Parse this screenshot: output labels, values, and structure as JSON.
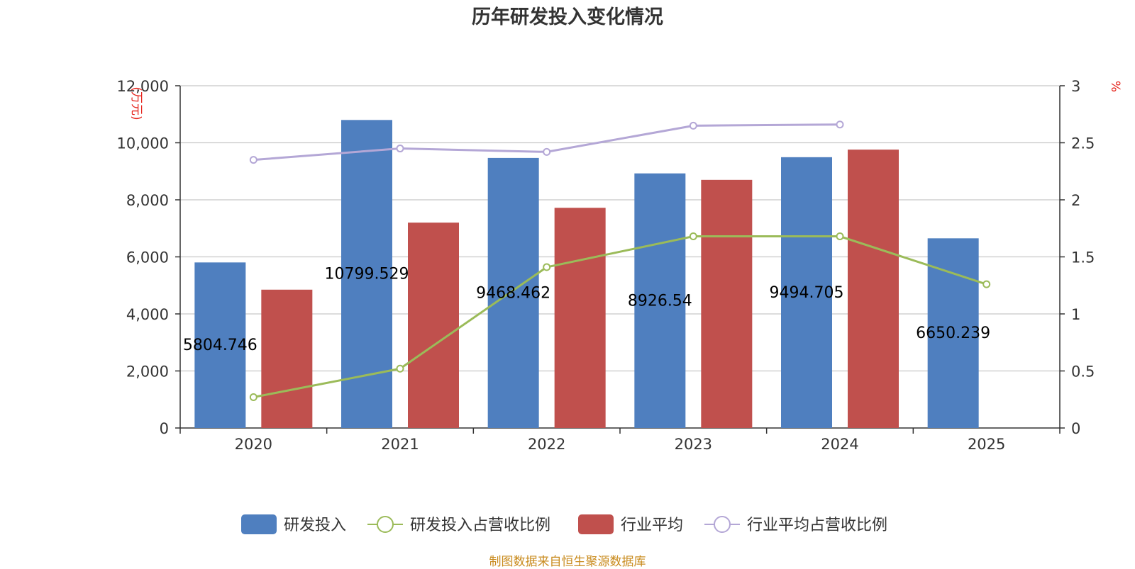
{
  "chart_data": {
    "type": "bar",
    "title": "历年研发投入变化情况",
    "categories": [
      "2020",
      "2021",
      "2022",
      "2023",
      "2024",
      "2025"
    ],
    "y_left": {
      "unit": "(万元)",
      "ylim": [
        0,
        12000
      ],
      "ticks": [
        "0",
        "2,000",
        "4,000",
        "6,000",
        "8,000",
        "10,000",
        "12,000"
      ],
      "tick_values": [
        0,
        2000,
        4000,
        6000,
        8000,
        10000,
        12000
      ]
    },
    "y_right": {
      "unit": "%",
      "ylim": [
        0,
        3
      ],
      "ticks": [
        "0",
        "0.5",
        "1",
        "1.5",
        "2",
        "2.5",
        "3"
      ],
      "tick_values": [
        0,
        0.5,
        1,
        1.5,
        2,
        2.5,
        3
      ]
    },
    "series": [
      {
        "name": "研发投入",
        "type": "bar",
        "axis": "left",
        "color": "#4f7fbf",
        "values": [
          5804.746,
          10799.529,
          9468.462,
          8926.54,
          9494.705,
          6650.239
        ],
        "labels": [
          "5804.746",
          "10799.529",
          "9468.462",
          "8926.54",
          "9494.705",
          "6650.239"
        ]
      },
      {
        "name": "研发投入占营收比例",
        "type": "line",
        "axis": "right",
        "color": "#9bbb59",
        "values": [
          0.27,
          0.52,
          1.41,
          1.68,
          1.68,
          1.26
        ]
      },
      {
        "name": "行业平均",
        "type": "bar",
        "axis": "left",
        "color": "#c0504d",
        "values": [
          4850,
          7200,
          7720,
          8700,
          9760,
          null
        ]
      },
      {
        "name": "行业平均占营收比例",
        "type": "line",
        "axis": "right",
        "color": "#b4a7d6",
        "values": [
          2.35,
          2.45,
          2.42,
          2.65,
          2.66,
          null
        ]
      }
    ],
    "grid": true,
    "legend_position": "bottom"
  },
  "footer": {
    "source": "制图数据来自恒生聚源数据库"
  }
}
